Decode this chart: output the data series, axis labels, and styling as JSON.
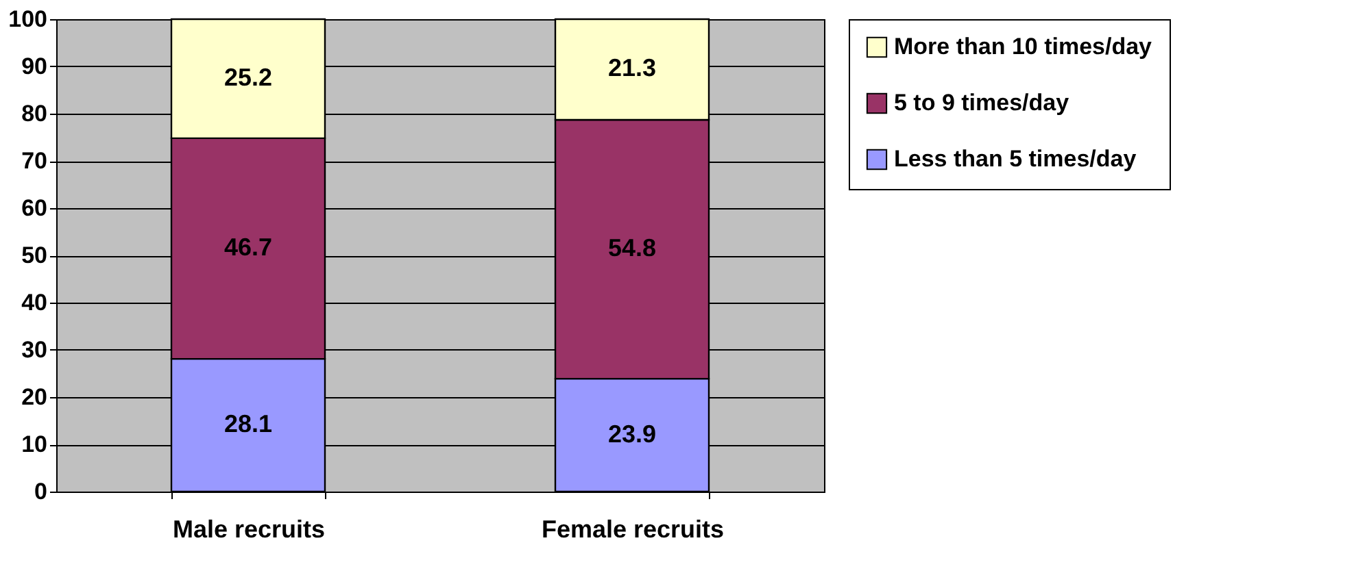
{
  "chart_data": {
    "type": "bar",
    "stacked": true,
    "categories": [
      "Male recruits",
      "Female recruits"
    ],
    "series": [
      {
        "name": "Less than 5 times/day",
        "color": "#9999ff",
        "values": [
          28.1,
          23.9
        ]
      },
      {
        "name": "5 to 9 times/day",
        "color": "#993366",
        "values": [
          46.7,
          54.8
        ]
      },
      {
        "name": "More than 10 times/day",
        "color": "#ffffcc",
        "values": [
          25.2,
          21.3
        ]
      }
    ],
    "ylim": [
      0,
      100
    ],
    "yticks": [
      0,
      10,
      20,
      30,
      40,
      50,
      60,
      70,
      80,
      90,
      100
    ],
    "grid": "y",
    "legend": "right",
    "data_labels": true
  }
}
